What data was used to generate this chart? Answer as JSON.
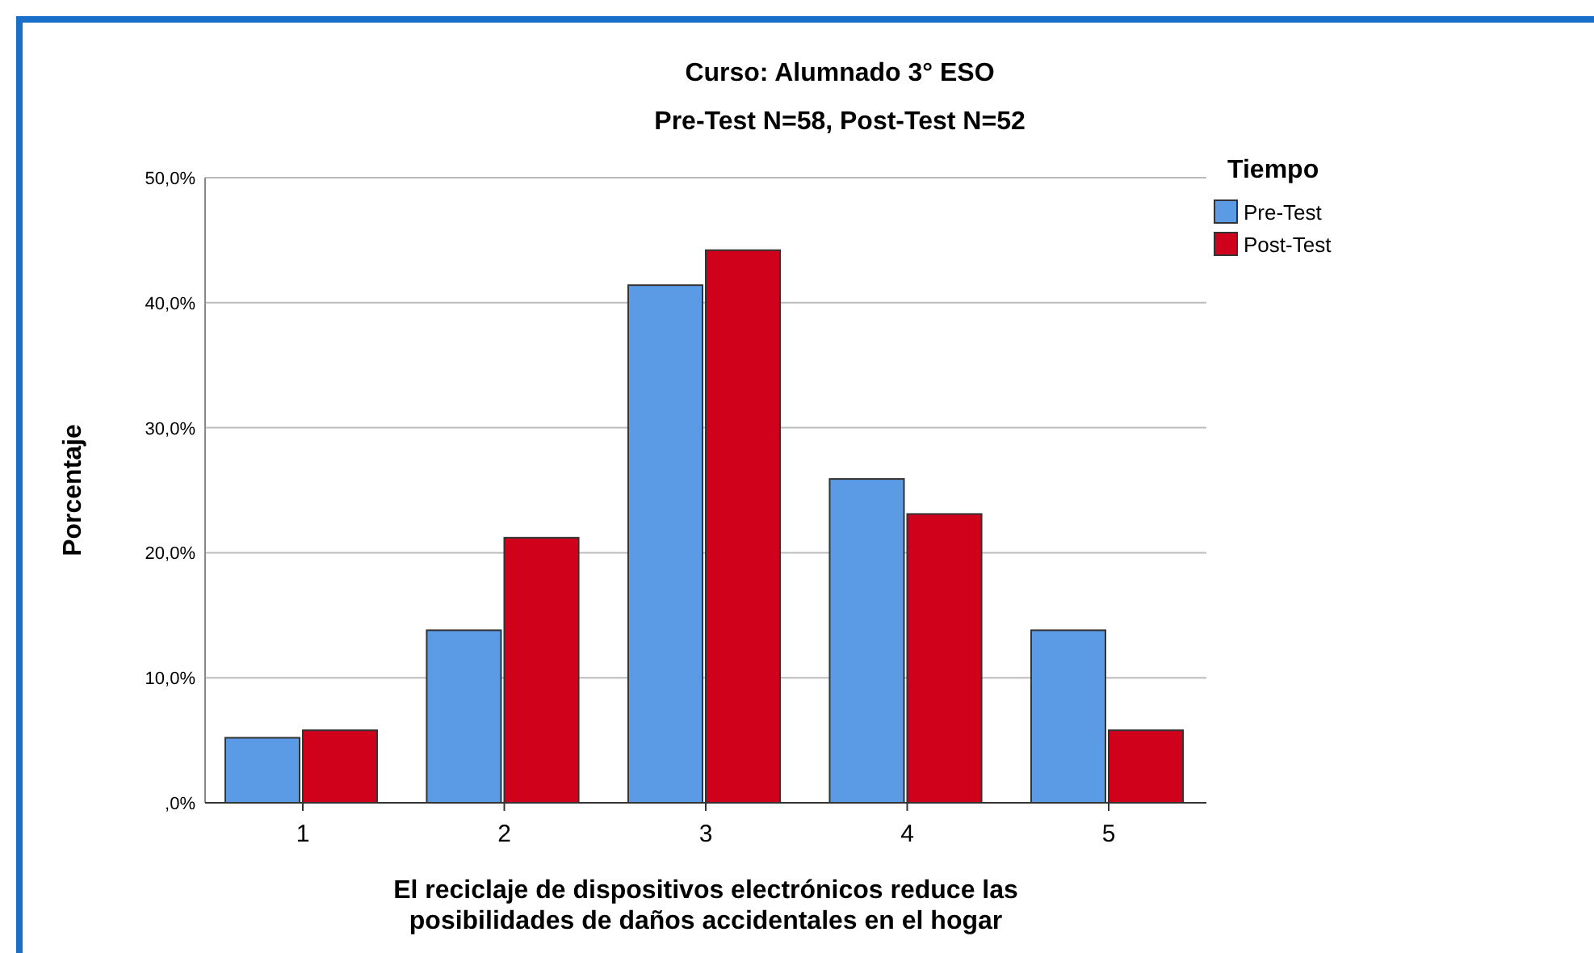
{
  "chart_data": {
    "type": "bar",
    "title": "Curso: Alumnado 3° ESO",
    "subtitle": "Pre-Test N=58, Post-Test N=52",
    "xlabel": "El reciclaje de dispositivos electrónicos reduce las posibilidades de daños accidentales en el hogar",
    "ylabel": "Porcentaje",
    "legend_title": "Tiempo",
    "categories": [
      "1",
      "2",
      "3",
      "4",
      "5"
    ],
    "series": [
      {
        "name": "Pre-Test",
        "color": "#5b9be6",
        "values": [
          5.2,
          13.8,
          41.4,
          25.9,
          13.8
        ]
      },
      {
        "name": "Post-Test",
        "color": "#d0021b",
        "values": [
          5.8,
          21.2,
          44.2,
          23.1,
          5.8
        ]
      }
    ],
    "ylim": [
      0,
      50
    ],
    "yticks": [
      {
        "value": 0,
        "label": ",0%"
      },
      {
        "value": 10,
        "label": "10,0%"
      },
      {
        "value": 20,
        "label": "20,0%"
      },
      {
        "value": 30,
        "label": "30,0%"
      },
      {
        "value": 40,
        "label": "40,0%"
      },
      {
        "value": 50,
        "label": "50,0%"
      }
    ],
    "grid": "y",
    "legend": "top right"
  }
}
